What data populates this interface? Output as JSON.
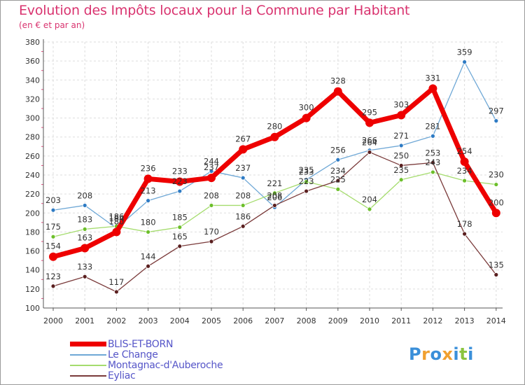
{
  "header": {
    "title": "Evolution des Impôts locaux pour la Commune par Habitant",
    "subtitle": "(en € et par an)"
  },
  "logo": {
    "letters": [
      "P",
      "r",
      "o",
      "x",
      "i",
      "t",
      "i"
    ],
    "colors": [
      "#3a8fd9",
      "#f0a030",
      "#3a8fd9",
      "#f0a030",
      "#3a8fd9",
      "#8ac43f",
      "#3a8fd9"
    ]
  },
  "chart_data": {
    "type": "line",
    "title": "Evolution des Impôts locaux pour la Commune par Habitant",
    "subtitle": "(en € et par an)",
    "xlabel": "",
    "ylabel": "",
    "x": [
      "2000",
      "2001",
      "2002",
      "2003",
      "2004",
      "2005",
      "2006",
      "2007",
      "2008",
      "2009",
      "2010",
      "2011",
      "2012",
      "2013",
      "2014"
    ],
    "ylim": [
      100,
      380
    ],
    "yticks": [
      100,
      120,
      140,
      160,
      180,
      200,
      220,
      240,
      260,
      280,
      300,
      320,
      340,
      360,
      380
    ],
    "grid": true,
    "legend_position": "bottom-left",
    "series": [
      {
        "name": "BLIS-ET-BORN",
        "color": "#ee0000",
        "marker_color": "#ee0000",
        "line_width": 7,
        "marker_r": 6,
        "values": [
          154,
          163,
          180,
          236,
          233,
          237,
          267,
          280,
          300,
          328,
          295,
          303,
          331,
          254,
          200
        ],
        "labels": [
          "154",
          "163",
          "180",
          "236",
          "233",
          "237",
          "267",
          "280",
          "300",
          "328",
          "295",
          "303",
          "331",
          "254",
          "200"
        ]
      },
      {
        "name": "Le Change",
        "color": "#6fa8d6",
        "marker_color": "#2e7bc4",
        "line_width": 1.3,
        "marker_r": 3,
        "values": [
          203,
          208,
          184,
          213,
          223,
          244,
          237,
          206,
          235,
          256,
          266,
          271,
          281,
          359,
          297
        ],
        "labels": [
          "203",
          "208",
          "184",
          "213",
          "223",
          "244",
          "237",
          "206",
          "235",
          "256",
          "266",
          "271",
          "281",
          "359",
          "297"
        ]
      },
      {
        "name": "Montagnac-d'Auberoche",
        "color": "#a5dc6e",
        "marker_color": "#6cbf2a",
        "line_width": 1.3,
        "marker_r": 3,
        "values": [
          175,
          183,
          186,
          180,
          185,
          208,
          208,
          221,
          233,
          225,
          204,
          235,
          243,
          234,
          230
        ],
        "labels": [
          "175",
          "183",
          "186",
          "180",
          "185",
          "208",
          "208",
          "221",
          "233",
          "225",
          "204",
          "235",
          "243",
          "234",
          "230"
        ]
      },
      {
        "name": "Eyliac",
        "color": "#7a3a3a",
        "marker_color": "#5a1f1f",
        "line_width": 1.3,
        "marker_r": 3,
        "values": [
          123,
          133,
          117,
          144,
          165,
          170,
          186,
          208,
          223,
          234,
          264,
          250,
          253,
          178,
          135
        ],
        "labels": [
          "123",
          "133",
          "117",
          "144",
          "165",
          "170",
          "186",
          "208",
          "223",
          "234",
          "264",
          "250",
          "253",
          "178",
          "135"
        ]
      }
    ]
  }
}
